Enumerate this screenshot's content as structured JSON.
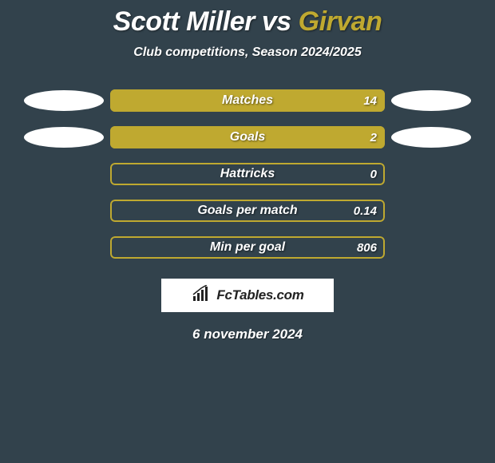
{
  "background_color": "#32424c",
  "title": {
    "part1": "Scott Miller",
    "vs": " vs ",
    "part2": "Girvan",
    "part1_color": "#ffffff",
    "part2_color": "#bfa930",
    "fontsize": 34
  },
  "subtitle": {
    "text": "Club competitions, Season 2024/2025",
    "fontsize": 16
  },
  "bars": {
    "fill_color": "#bfa930",
    "outline_color": "#bfa930",
    "label_color": "#ffffff",
    "label_fontsize": 16,
    "value_fontsize": 15,
    "rows": [
      {
        "label": "Matches",
        "value": "14",
        "fill_pct": 100,
        "left_blob": true,
        "right_blob": true
      },
      {
        "label": "Goals",
        "value": "2",
        "fill_pct": 100,
        "left_blob": true,
        "right_blob": true
      },
      {
        "label": "Hattricks",
        "value": "0",
        "fill_pct": 0,
        "left_blob": false,
        "right_blob": false
      },
      {
        "label": "Goals per match",
        "value": "0.14",
        "fill_pct": 0,
        "left_blob": false,
        "right_blob": false
      },
      {
        "label": "Min per goal",
        "value": "806",
        "fill_pct": 0,
        "left_blob": false,
        "right_blob": false
      }
    ]
  },
  "brand": {
    "text": "FcTables.com",
    "icon": "bar-chart-icon",
    "bg_color": "#ffffff",
    "text_color": "#222222"
  },
  "date": {
    "text": "6 november 2024",
    "fontsize": 17
  },
  "side_blob": {
    "color": "#ffffff",
    "width": 100,
    "height": 26
  }
}
